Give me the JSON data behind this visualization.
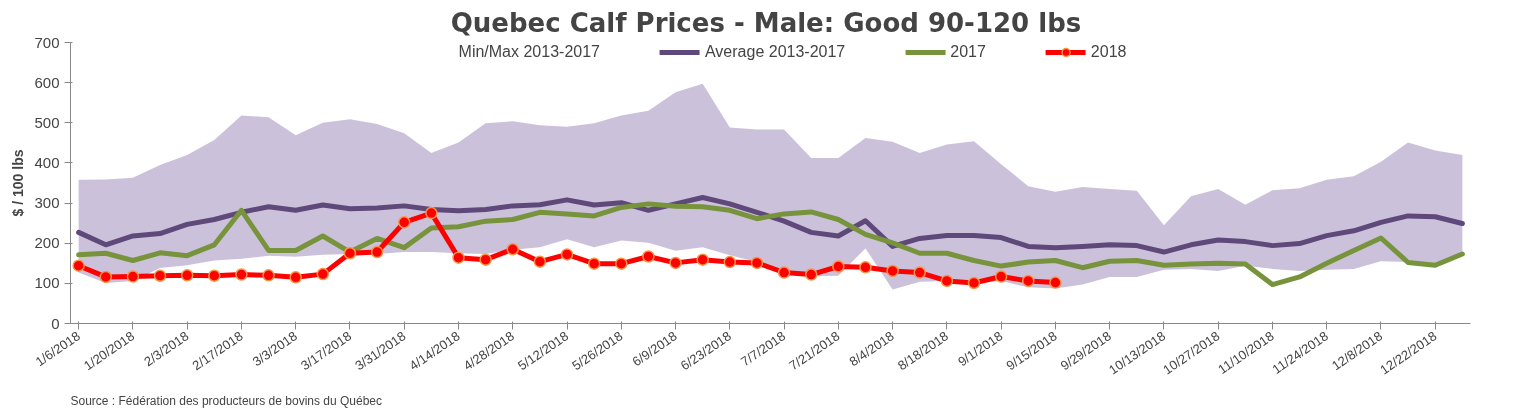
{
  "chart_data": {
    "type": "line",
    "title": "Quebec Calf Prices -  Male: Good 90-120 lbs",
    "ylabel": "$ / 100 lbs",
    "categories": [
      "1/6/2018",
      null,
      "1/20/2018",
      null,
      "2/3/2018",
      null,
      "2/17/2018",
      null,
      "3/3/2018",
      null,
      "3/17/2018",
      null,
      "3/31/2018",
      null,
      "4/14/2018",
      null,
      "4/28/2018",
      null,
      "5/12/2018",
      null,
      "5/26/2018",
      null,
      "6/9/2018",
      null,
      "6/23/2018",
      null,
      "7/7/2018",
      null,
      "7/21/2018",
      null,
      "8/4/2018",
      null,
      "8/18/2018",
      null,
      "9/1/2018",
      null,
      "9/15/2018",
      null,
      "9/29/2018",
      null,
      "10/13/2018",
      null,
      "10/27/2018",
      null,
      "11/10/2018",
      null,
      "11/24/2018",
      null,
      "12/8/2018",
      null,
      "12/22/2018",
      null
    ],
    "series": [
      {
        "name": "Average 2013-2017",
        "color": "#5f497a",
        "values": [
          227,
          196,
          218,
          224,
          247,
          259,
          277,
          291,
          282,
          295,
          286,
          288,
          293,
          284,
          281,
          284,
          293,
          296,
          308,
          295,
          301,
          282,
          298,
          314,
          298,
          277,
          255,
          227,
          218,
          256,
          192,
          212,
          219,
          219,
          214,
          192,
          189,
          192,
          196,
          194,
          178,
          196,
          208,
          204,
          194,
          199,
          219,
          231,
          252,
          268,
          266,
          249
        ],
        "lower": [
          127,
          101,
          106,
          138,
          145,
          157,
          161,
          169,
          166,
          171,
          173,
          173,
          178,
          178,
          175,
          173,
          184,
          190,
          210,
          190,
          207,
          201,
          181,
          190,
          170,
          153,
          131,
          118,
          119,
          187,
          85,
          104,
          106,
          102,
          106,
          90,
          87,
          97,
          116,
          116,
          134,
          136,
          131,
          144,
          136,
          131,
          134,
          136,
          155,
          153,
          145,
          173
        ],
        "upper": [
          358,
          359,
          363,
          395,
          420,
          457,
          518,
          514,
          469,
          500,
          509,
          497,
          474,
          425,
          451,
          499,
          504,
          494,
          490,
          499,
          518,
          530,
          576,
          597,
          488,
          483,
          483,
          412,
          412,
          462,
          453,
          425,
          446,
          454,
          397,
          342,
          328,
          340,
          335,
          331,
          245,
          317,
          335,
          296,
          332,
          337,
          358,
          367,
          403,
          451,
          431,
          420
        ]
      },
      {
        "name": "2017",
        "color": "#77933c",
        "values": [
          171,
          175,
          157,
          176,
          169,
          196,
          282,
          182,
          182,
          218,
          178,
          212,
          189,
          238,
          241,
          255,
          259,
          277,
          273,
          268,
          289,
          298,
          292,
          291,
          282,
          261,
          273,
          278,
          259,
          222,
          201,
          175,
          175,
          157,
          143,
          153,
          157,
          139,
          155,
          157,
          145,
          148,
          150,
          148,
          97,
          116,
          150,
          182,
          213,
          152,
          145,
          173
        ]
      },
      {
        "name": "2018",
        "color": "#ff0000",
        "marker": "circle",
        "values": [
          144,
          116,
          117,
          119,
          120,
          119,
          122,
          120,
          115,
          123,
          175,
          178,
          252,
          275,
          164,
          159,
          185,
          154,
          172,
          149,
          149,
          167,
          151,
          159,
          153,
          151,
          127,
          122,
          142,
          140,
          131,
          127,
          106,
          101,
          117,
          106,
          102,
          null,
          null,
          null,
          null,
          null,
          null,
          null,
          null,
          null,
          null,
          null,
          null,
          null,
          null,
          null
        ]
      }
    ],
    "ylim": [
      0,
      700
    ],
    "yticks": [
      0,
      100,
      200,
      300,
      400,
      500,
      600,
      700
    ],
    "legend": "top",
    "grid": false,
    "annotations": [
      "Min/Max 2013-2017",
      "Source : Fédération des producteurs de bovins du Québec"
    ]
  }
}
